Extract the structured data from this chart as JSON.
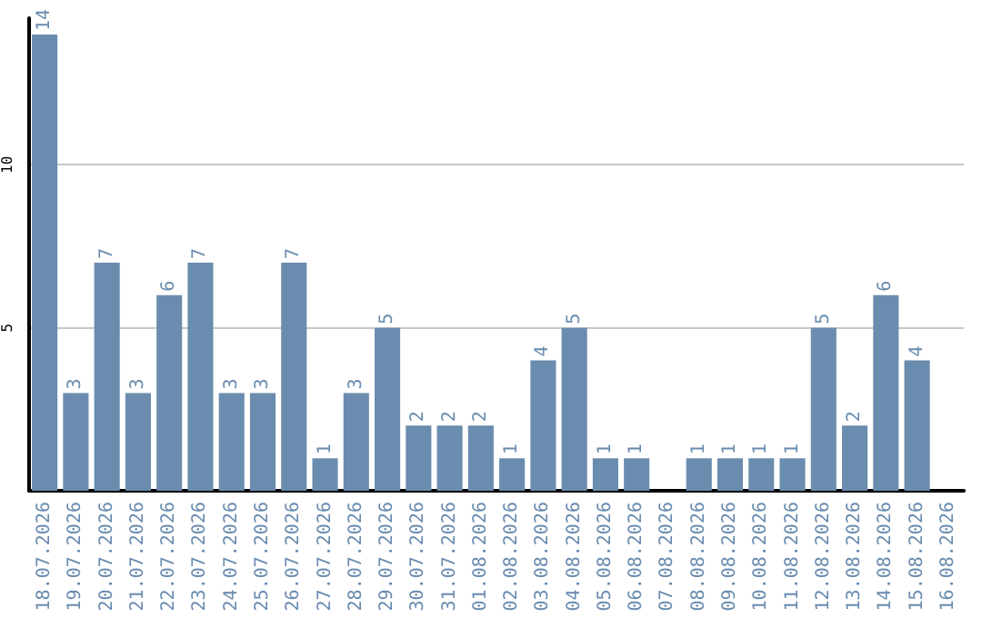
{
  "chart_data": {
    "type": "bar",
    "categories": [
      "18.07.2026",
      "19.07.2026",
      "20.07.2026",
      "21.07.2026",
      "22.07.2026",
      "23.07.2026",
      "24.07.2026",
      "25.07.2026",
      "26.07.2026",
      "27.07.2026",
      "28.07.2026",
      "29.07.2026",
      "30.07.2026",
      "31.07.2026",
      "01.08.2026",
      "02.08.2026",
      "03.08.2026",
      "04.08.2026",
      "05.08.2026",
      "06.08.2026",
      "07.08.2026",
      "08.08.2026",
      "09.08.2026",
      "10.08.2026",
      "11.08.2026",
      "12.08.2026",
      "13.08.2026",
      "14.08.2026",
      "15.08.2026",
      "16.08.2026"
    ],
    "values": [
      14,
      3,
      7,
      3,
      6,
      7,
      3,
      3,
      7,
      1,
      3,
      5,
      2,
      2,
      2,
      1,
      4,
      5,
      1,
      1,
      null,
      1,
      1,
      1,
      1,
      5,
      2,
      6,
      4,
      null
    ],
    "color": "#6a8caf",
    "ylim": [
      0,
      14.5
    ],
    "yticks": [
      5,
      10
    ],
    "grid": "y",
    "data_labels": true
  }
}
